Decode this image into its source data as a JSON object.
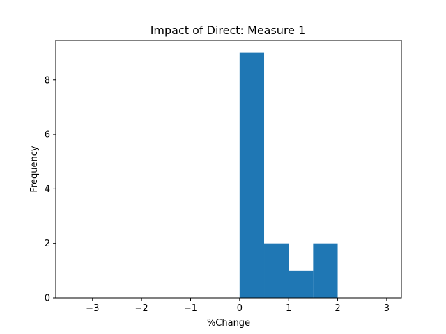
{
  "chart_data": {
    "type": "bar",
    "subtype": "histogram",
    "title": "Impact of Direct: Measure 1",
    "xlabel": "%Change",
    "ylabel": "Frequency",
    "xlim": [
      -3.75,
      3.3
    ],
    "ylim": [
      0,
      9.45
    ],
    "x_ticks": [
      -3,
      -2,
      -1,
      0,
      1,
      2,
      3
    ],
    "x_tick_labels": [
      "−3",
      "−2",
      "−1",
      "0",
      "1",
      "2",
      "3"
    ],
    "y_ticks": [
      0,
      2,
      4,
      6,
      8
    ],
    "y_tick_labels": [
      "0",
      "2",
      "4",
      "6",
      "8"
    ],
    "bin_edges": [
      0,
      0.5,
      1.0,
      1.5,
      2.0
    ],
    "values": [
      9,
      2,
      1,
      2
    ],
    "bar_color": "#1f77b4",
    "grid": false,
    "legend": "none"
  }
}
